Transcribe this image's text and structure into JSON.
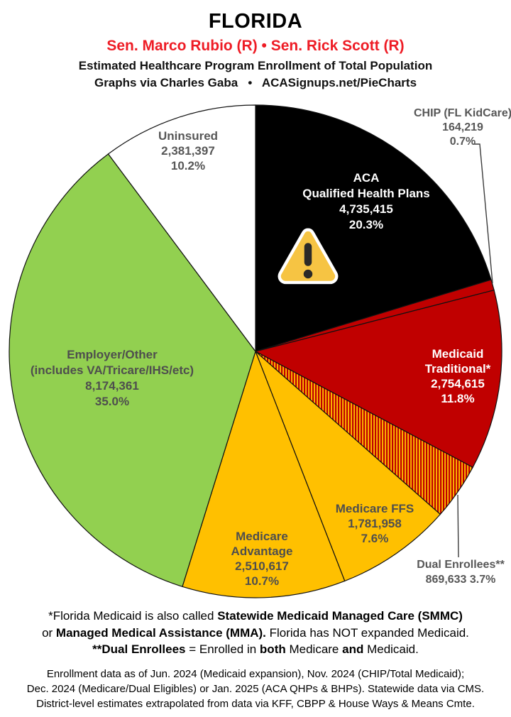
{
  "header": {
    "title": "FLORIDA",
    "senators": "Sen. Marco Rubio (R) • Sen. Rick Scott (R)",
    "description": "Estimated Healthcare Program Enrollment of Total Population",
    "credit": "Graphs via Charles Gaba   •   ACASignups.net/PieCharts"
  },
  "colors": {
    "senators_red": "#ee1c25",
    "slice_stroke": "#111111"
  },
  "chart_data": {
    "type": "pie",
    "title": "Estimated Healthcare Program Enrollment of Total Population",
    "start_angle_deg": 0,
    "direction": "clockwise",
    "legend_position": "labels-on-slices",
    "segments": [
      {
        "id": "aca-qhp",
        "label": "ACA Qualified Health Plans",
        "value": 4735415,
        "pct": 20.3,
        "color": "#000000",
        "text_color": "#ffffff"
      },
      {
        "id": "chip",
        "label": "CHIP (FL KidCare)",
        "value": 164219,
        "pct": 0.7,
        "color": "#c00000",
        "text_color": "#575757"
      },
      {
        "id": "medicaid-traditional",
        "label": "Medicaid Traditional*",
        "value": 2754615,
        "pct": 11.8,
        "color": "#c00000",
        "text_color": "#ffffff"
      },
      {
        "id": "dual-enrollees",
        "label": "Dual Enrollees**",
        "value": 869633,
        "pct": 3.7,
        "color": "#c00000",
        "stripe_color": "#ffc000",
        "pattern": "vertical-stripes",
        "text_color": "#575757"
      },
      {
        "id": "medicare-ffs",
        "label": "Medicare FFS",
        "value": 1781958,
        "pct": 7.6,
        "color": "#ffc000",
        "text_color": "#4e4e4e"
      },
      {
        "id": "medicare-advantage",
        "label": "Medicare Advantage",
        "value": 2510617,
        "pct": 10.7,
        "color": "#ffc000",
        "text_color": "#4e4e4e"
      },
      {
        "id": "employer-other",
        "label": "Employer/Other (includes VA/Tricare/IHS/etc)",
        "value": 8174361,
        "pct": 35.0,
        "color": "#92d050",
        "text_color": "#4e4e4e"
      },
      {
        "id": "uninsured",
        "label": "Uninsured",
        "value": 2381397,
        "pct": 10.2,
        "color": "#ffffff",
        "text_color": "#575757"
      }
    ]
  },
  "labels": {
    "aca": {
      "l1": "ACA",
      "l2": "Qualified Health Plans",
      "l3": "4,735,415",
      "l4": "20.3%"
    },
    "chip": {
      "l1": "CHIP (FL KidCare)",
      "l2": "164,219",
      "l3": "0.7%"
    },
    "uninsured": {
      "l1": "Uninsured",
      "l2": "2,381,397",
      "l3": "10.2%"
    },
    "employer": {
      "l1": "Employer/Other",
      "l2": "(includes VA/Tricare/IHS/etc)",
      "l3": "8,174,361",
      "l4": "35.0%"
    },
    "medicaid": {
      "l1": "Medicaid",
      "l2": "Traditional*",
      "l3": "2,754,615",
      "l4": "11.8%"
    },
    "ffs": {
      "l1": "Medicare FFS",
      "l2": "1,781,958",
      "l3": "7.6%"
    },
    "adv": {
      "l1": "Medicare",
      "l2": "Advantage",
      "l3": "2,510,617",
      "l4": "10.7%"
    },
    "dual": {
      "l1": "Dual Enrollees**",
      "l2": "869,633 3.7%"
    }
  },
  "footnotes": {
    "notes": [
      [
        {
          "t": "*Florida Medicaid is also called ",
          "b": 0
        },
        {
          "t": "Statewide Medicaid Managed Care (SMMC)",
          "b": 1
        }
      ],
      [
        {
          "t": "or ",
          "b": 0
        },
        {
          "t": "Managed Medical Assistance (MMA).",
          "b": 1
        },
        {
          "t": " Florida has NOT expanded Medicaid.",
          "b": 0
        }
      ],
      [
        {
          "t": "**Dual Enrollees",
          "b": 1
        },
        {
          "t": " = Enrolled in ",
          "b": 0
        },
        {
          "t": "both",
          "b": 1
        },
        {
          "t": " Medicare ",
          "b": 0
        },
        {
          "t": "and",
          "b": 1
        },
        {
          "t": " Medicaid.",
          "b": 0
        }
      ]
    ],
    "sources": [
      "Enrollment data as of Jun. 2024 (Medicaid expansion), Nov. 2024 (CHIP/Total Medicaid);",
      "Dec. 2024 (Medicare/Dual Eligibles) or Jan. 2025 (ACA QHPs & BHPs). Statewide data via CMS.",
      "District-level estimates extrapolated from data via KFF, CBPP & House Ways & Means Cmte."
    ]
  }
}
